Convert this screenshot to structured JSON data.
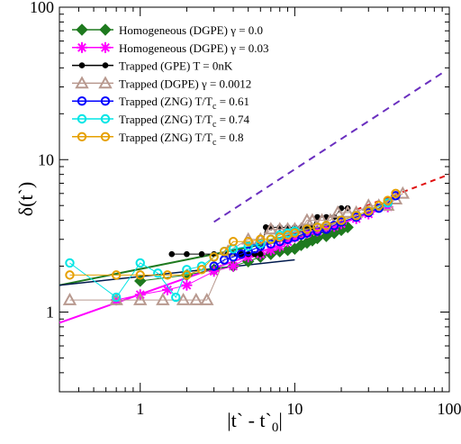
{
  "chart_data": {
    "type": "scatter",
    "x_scale": "log",
    "y_scale": "log",
    "xlim": [
      0.3,
      100
    ],
    "ylim": [
      0.3,
      100
    ],
    "xlabel": "|t` - t`0|",
    "ylabel": "δ(t`)",
    "x_ticks": [
      {
        "value": 1,
        "label": "1"
      },
      {
        "value": 10,
        "label": "10"
      },
      {
        "value": 100,
        "label": "100"
      }
    ],
    "y_ticks": [
      {
        "value": 1,
        "label": "1"
      },
      {
        "value": 10,
        "label": "10"
      },
      {
        "value": 100,
        "label": "100"
      }
    ],
    "grid": false,
    "legend_position": "top-left",
    "series": [
      {
        "name": "Homogeneous (DGPE) γ = 0.0",
        "color": "#1f7a1f",
        "marker": "diamond",
        "x": [
          1,
          2,
          3,
          4,
          5,
          6,
          7,
          8,
          9,
          10,
          11,
          12,
          13,
          14,
          16,
          18,
          20,
          22
        ],
        "y": [
          1.6,
          1.75,
          1.9,
          2.0,
          2.15,
          2.3,
          2.4,
          2.5,
          2.55,
          2.6,
          2.75,
          2.85,
          2.95,
          3.05,
          3.15,
          3.3,
          3.45,
          3.6
        ]
      },
      {
        "name": "Homogeneous (DGPE) γ = 0.03",
        "color": "#ff00ff",
        "marker": "asterisk",
        "x": [
          0.7,
          1,
          1.5,
          2,
          3,
          4,
          5,
          6,
          7,
          8,
          9,
          10,
          12,
          14,
          16,
          18,
          20,
          25,
          30,
          40
        ],
        "y": [
          1.2,
          1.3,
          1.4,
          1.5,
          1.85,
          2.0,
          2.3,
          2.4,
          2.55,
          2.7,
          2.9,
          3.1,
          3.3,
          3.4,
          3.55,
          3.65,
          3.8,
          4.1,
          4.4,
          4.9
        ]
      },
      {
        "name": "Trapped (GPE) T = 0nK",
        "color": "#000000",
        "marker": "dot",
        "x": [
          1.6,
          2,
          2.5,
          3,
          3.5,
          4,
          4.5,
          5,
          5.5,
          6,
          6.5,
          7,
          8,
          9,
          10,
          11,
          12,
          13,
          14,
          16,
          18,
          20,
          22
        ],
        "y": [
          2.4,
          2.4,
          2.4,
          2.4,
          2.4,
          2.4,
          2.4,
          2.4,
          2.4,
          2.4,
          3.6,
          3.6,
          3.6,
          3.6,
          3.6,
          3.6,
          3.6,
          3.6,
          4.2,
          4.2,
          4.2,
          4.8,
          4.8
        ]
      },
      {
        "name": "Trapped (DGPE) γ = 0.0012",
        "color": "#b8998f",
        "marker": "triangle",
        "x": [
          0.35,
          0.7,
          1,
          1.4,
          1.9,
          2.3,
          2.7,
          3.7,
          5,
          6,
          7,
          8,
          9,
          10,
          11,
          12,
          13,
          15,
          17,
          19,
          22,
          25,
          30,
          35,
          40,
          45,
          50
        ],
        "y": [
          1.2,
          1.2,
          1.2,
          1.2,
          1.2,
          1.2,
          1.2,
          2.5,
          3.0,
          3.0,
          3.5,
          3.5,
          3.5,
          3.5,
          3.5,
          4.0,
          4.0,
          4.0,
          4.0,
          4.5,
          4.5,
          4.5,
          5.0,
          5.0,
          5.0,
          5.5,
          6.0
        ]
      },
      {
        "name": "Trapped (ZNG) T/Tc = 0.61",
        "color": "#0000ff",
        "marker": "circle",
        "x": [
          3,
          3.5,
          4,
          4.5,
          5,
          5.5,
          6,
          7,
          8,
          9,
          10,
          11,
          12,
          14,
          16,
          18,
          20,
          25,
          30,
          35,
          40,
          45
        ],
        "y": [
          2.0,
          2.2,
          2.3,
          2.4,
          2.5,
          2.6,
          2.7,
          2.8,
          2.9,
          3.0,
          3.1,
          3.2,
          3.3,
          3.4,
          3.5,
          3.7,
          3.9,
          4.2,
          4.5,
          4.8,
          5.2,
          5.8
        ]
      },
      {
        "name": "Trapped (ZNG) T/Tc = 0.74",
        "color": "#00e5e5",
        "marker": "circle",
        "x": [
          0.35,
          0.7,
          1,
          1.3,
          1.7,
          2,
          2.5,
          3,
          3.5,
          4,
          5,
          6,
          7,
          8,
          9,
          10,
          12,
          14,
          16,
          20,
          25,
          30,
          40
        ],
        "y": [
          2.1,
          1.25,
          2.1,
          1.8,
          1.25,
          1.9,
          2.0,
          2.3,
          2.5,
          2.6,
          2.7,
          2.8,
          3.0,
          3.2,
          3.3,
          3.4,
          3.5,
          3.6,
          3.7,
          4.0,
          4.3,
          4.6,
          5.2
        ]
      },
      {
        "name": "Trapped (ZNG) T/Tc = 0.8",
        "color": "#e6a000",
        "marker": "circle",
        "x": [
          0.35,
          0.7,
          1,
          1.5,
          2,
          2.5,
          3,
          3.5,
          4,
          5,
          6,
          7,
          8,
          9,
          10,
          12,
          14,
          16,
          20,
          25,
          30,
          35,
          40,
          45
        ],
        "y": [
          1.75,
          1.75,
          1.75,
          1.75,
          1.75,
          1.9,
          2.3,
          2.5,
          2.9,
          2.9,
          3.0,
          3.0,
          3.1,
          3.2,
          3.3,
          3.5,
          3.6,
          3.7,
          4.0,
          4.3,
          4.6,
          5.0,
          5.4,
          6.0
        ]
      }
    ],
    "fit_lines": [
      {
        "color": "#6a2fbf",
        "dash": "8,6",
        "width": 2,
        "x": [
          3,
          90
        ],
        "y": [
          3.9,
          37
        ]
      },
      {
        "color": "#e01010",
        "dash": "6,5",
        "width": 2,
        "x": [
          25,
          100
        ],
        "y": [
          4.7,
          8.0
        ]
      },
      {
        "color": "#1f7a1f",
        "dash": "",
        "width": 2,
        "x": [
          0.3,
          22
        ],
        "y": [
          1.5,
          3.6
        ]
      },
      {
        "color": "#ff00ff",
        "dash": "",
        "width": 2,
        "x": [
          0.3,
          40
        ],
        "y": [
          0.85,
          4.9
        ]
      },
      {
        "color": "#001a4d",
        "dash": "",
        "width": 1.5,
        "x": [
          0.3,
          10
        ],
        "y": [
          1.5,
          2.2
        ]
      }
    ]
  }
}
